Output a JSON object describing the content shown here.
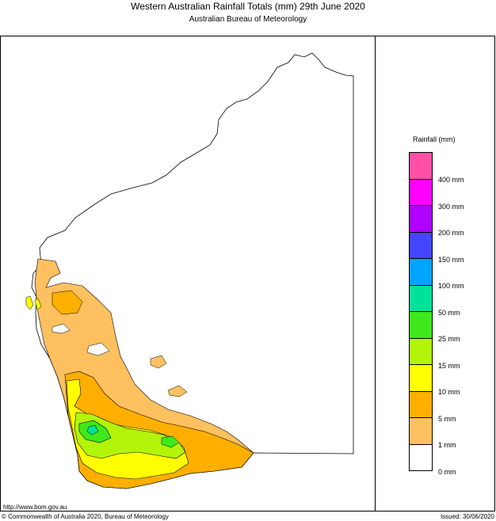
{
  "title": "Western Australian Rainfall Totals (mm) 29th June 2020",
  "subtitle": "Australian Bureau of Meteorology",
  "legend": {
    "title": "Rainfall (mm)",
    "swatches": [
      {
        "color": "#ff4fa6"
      },
      {
        "color": "#ff00ff"
      },
      {
        "color": "#b000ff"
      },
      {
        "color": "#4545ff"
      },
      {
        "color": "#00a5ff"
      },
      {
        "color": "#00e19a"
      },
      {
        "color": "#3fe81c"
      },
      {
        "color": "#b2f50a"
      },
      {
        "color": "#ffff00"
      },
      {
        "color": "#ffaf00"
      },
      {
        "color": "#ffc060"
      },
      {
        "color": "#ffffff"
      }
    ],
    "labels": [
      "400 mm",
      "300 mm",
      "200 mm",
      "150 mm",
      "100 mm",
      "50 mm",
      "25 mm",
      "15 mm",
      "10 mm",
      "5 mm",
      "1 mm",
      "0 mm"
    ]
  },
  "footer": {
    "url": "http://www.bom.gov.au",
    "copyright": "© Commonwealth of Australia 2020, Bureau of Meteorology",
    "issued": "Issued: 30/06/2020"
  }
}
